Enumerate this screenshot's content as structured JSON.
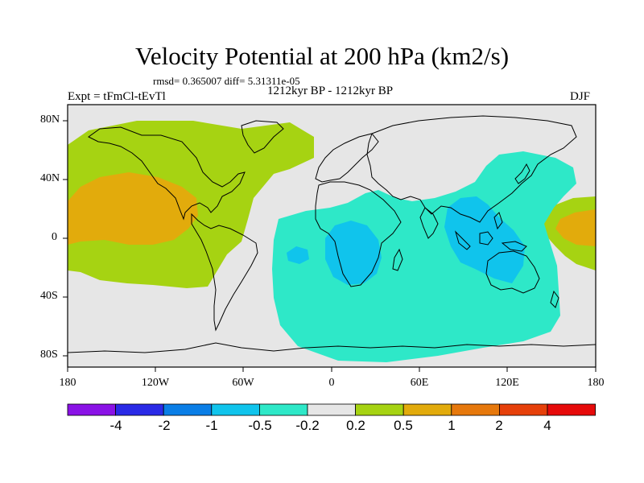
{
  "title": "Velocity Potential at 200 hPa (km2/s)",
  "stats": "rmsd= 0.365007 diff= 5.31311e-05",
  "period": "1212kyr BP - 1212kyr BP",
  "experiment": "Expt = tFmCl-tEvTl",
  "season": "DJF",
  "lat_labels": [
    "80N",
    "40N",
    "0",
    "40S",
    "80S"
  ],
  "lon_labels": [
    "180",
    "120W",
    "60W",
    "0",
    "60E",
    "120E",
    "180"
  ],
  "colorbar": {
    "labels": [
      "-4",
      "-2",
      "-1",
      "-0.5",
      "-0.2",
      "0.2",
      "0.5",
      "1",
      "2",
      "4"
    ],
    "colors": [
      "#8a12e6",
      "#2a2ae6",
      "#0a7ee6",
      "#10c4ec",
      "#2ee8c8",
      "#e6e6e6",
      "#a6d312",
      "#e2ab0c",
      "#e6780c",
      "#e6400a",
      "#e60a0a"
    ]
  },
  "field_colors": {
    "background": "#e6e6e6",
    "positive_weak": "#a6d312",
    "positive_mid": "#e2ab0c",
    "negative_weak": "#2ee8c8",
    "negative_mid": "#10c4ec"
  }
}
